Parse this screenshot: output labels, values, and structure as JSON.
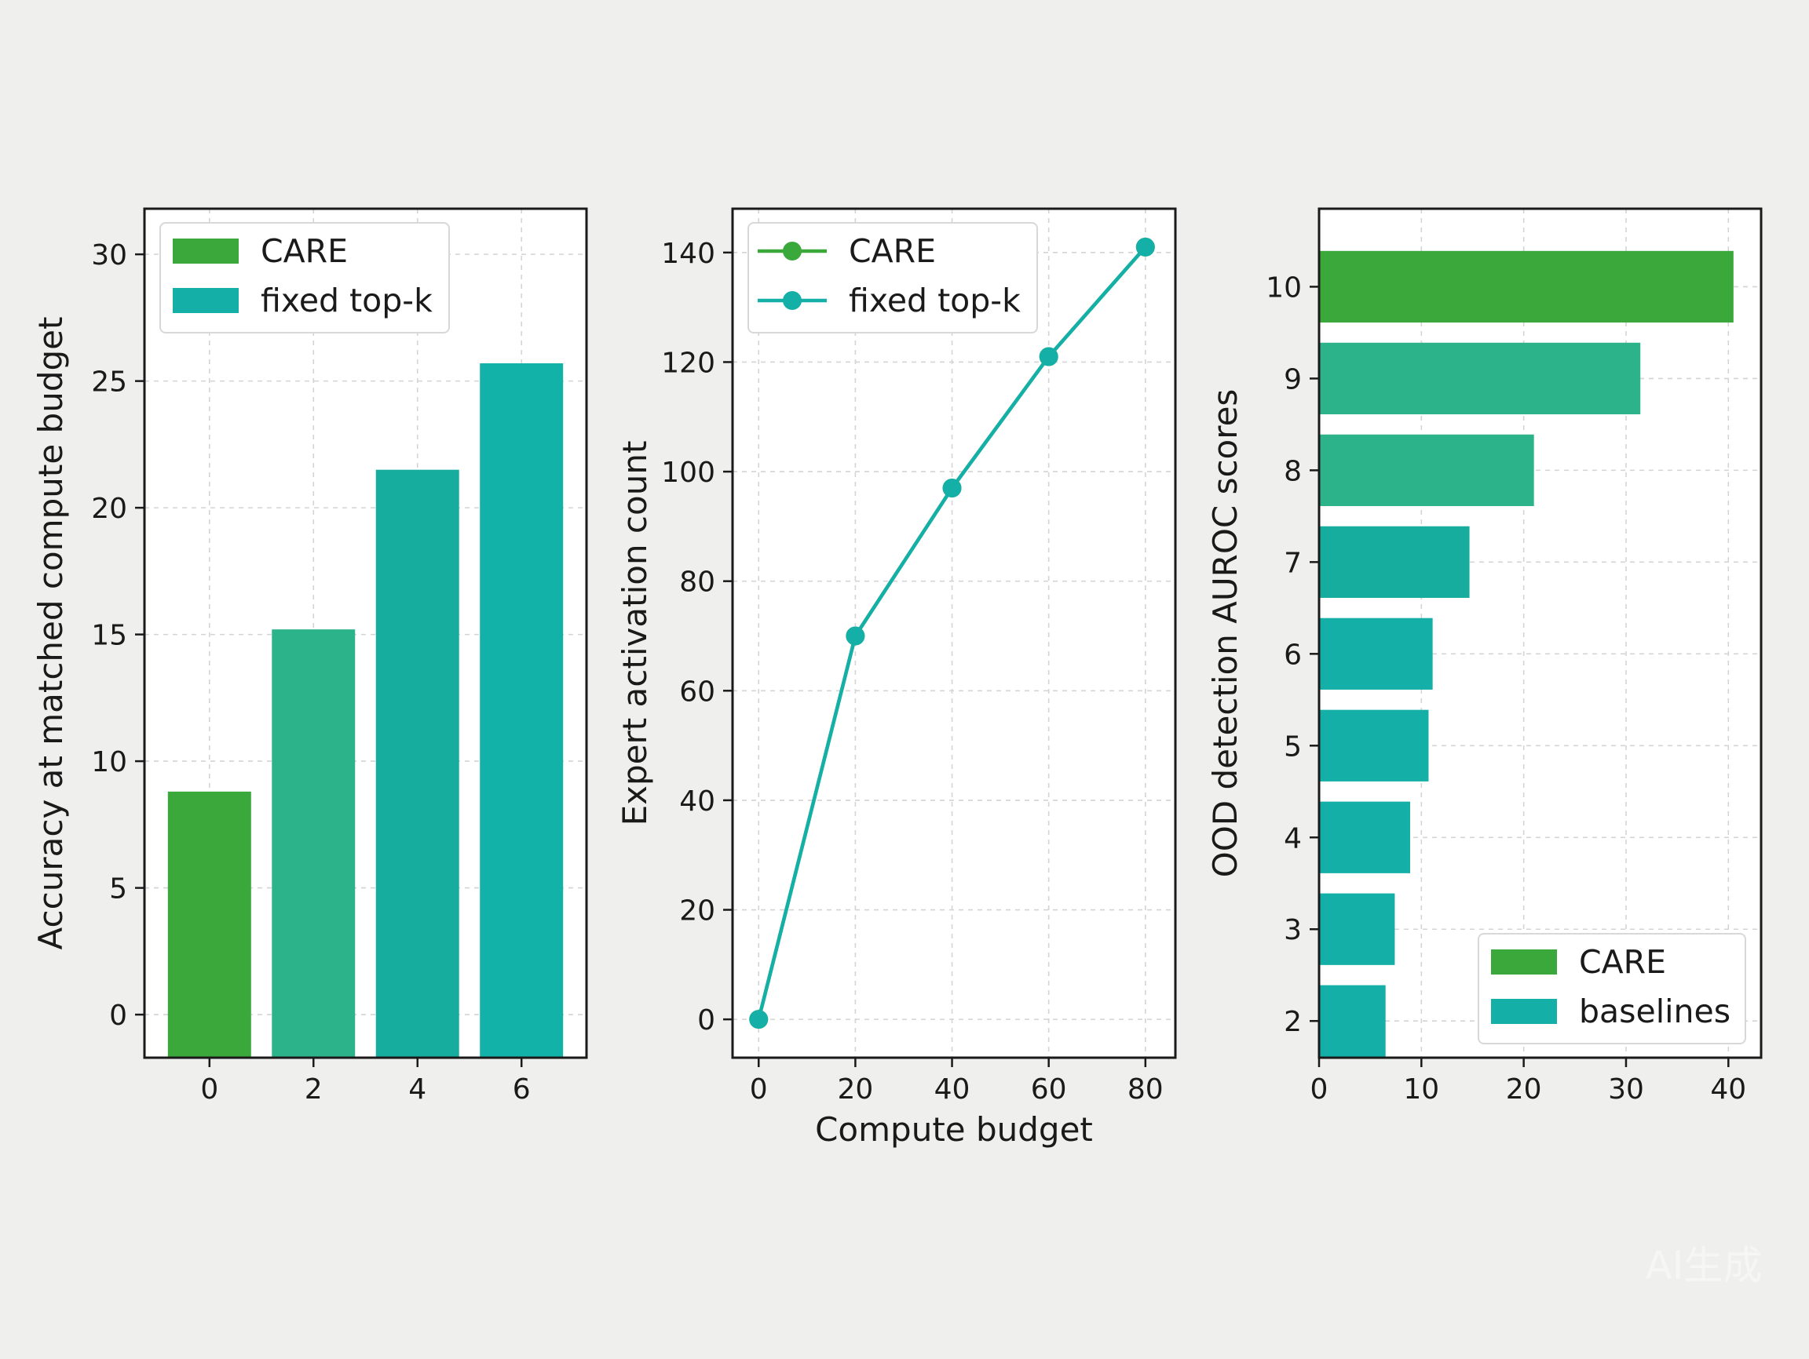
{
  "figure": {
    "background": "#efefed",
    "panel_background": "#ffffff",
    "watermark": "AI生成"
  },
  "colors": {
    "green": "#3aa83a",
    "teal_green": "#2db38a",
    "teal": "#14b0a8",
    "grid": "#d4d4d4",
    "axis": "#1a1a1a"
  },
  "chart_data": [
    {
      "id": "panel-a",
      "type": "bar",
      "orientation": "vertical",
      "ylabel": "Accuracy at matched compute budget",
      "xlabel": "",
      "x": [
        0,
        2,
        4,
        6
      ],
      "values": [
        8.8,
        15.2,
        21.5,
        25.7
      ],
      "bar_colors": [
        "#3aa83a",
        "#2db38a",
        "#17ad9e",
        "#12b2a8"
      ],
      "xticks": [
        0,
        2,
        4,
        6
      ],
      "yticks": [
        0,
        5,
        10,
        15,
        20,
        25,
        30
      ],
      "xlim": [
        -1.25,
        7.25
      ],
      "ylim": [
        -1.7,
        31.8
      ],
      "grid": true,
      "legend": {
        "placement": "top-left",
        "entries": [
          {
            "label": "CARE",
            "color": "#3aa83a",
            "kind": "patch"
          },
          {
            "label": "fixed top-k",
            "color": "#14b0a8",
            "kind": "patch"
          }
        ]
      }
    },
    {
      "id": "panel-b",
      "type": "line",
      "xlabel": "Compute budget",
      "ylabel": "Expert activation count",
      "series": [
        {
          "name": "CARE",
          "color": "#3aa83a",
          "x": [
            0,
            20,
            40,
            60,
            80
          ],
          "y": [
            0,
            70,
            97,
            121,
            141
          ]
        },
        {
          "name": "fixed top-k",
          "color": "#14b0a8",
          "x": [
            0,
            20,
            40,
            60,
            80
          ],
          "y": [
            0,
            70,
            97,
            121,
            141
          ]
        }
      ],
      "xticks": [
        0,
        20,
        40,
        60,
        80
      ],
      "yticks": [
        0,
        20,
        40,
        60,
        80,
        100,
        120,
        140
      ],
      "xlim": [
        -5.4,
        86.2
      ],
      "ylim": [
        -7,
        148
      ],
      "grid": true,
      "legend": {
        "placement": "top-left",
        "entries": [
          {
            "label": "CARE",
            "color": "#3aa83a",
            "kind": "line"
          },
          {
            "label": "fixed top-k",
            "color": "#14b0a8",
            "kind": "line"
          }
        ]
      }
    },
    {
      "id": "panel-c",
      "type": "bar",
      "orientation": "horizontal",
      "ylabel": "OOD detection AUROC scores",
      "xlabel": "",
      "y": [
        10,
        9,
        8,
        7,
        6,
        5,
        4,
        3,
        2
      ],
      "values": [
        40.5,
        31.4,
        21.0,
        14.7,
        11.1,
        10.7,
        8.9,
        7.4,
        6.5
      ],
      "bar_colors": [
        "#3aa83a",
        "#2db38a",
        "#2db38a",
        "#17ad9e",
        "#14b0a8",
        "#14b0a8",
        "#14b0a8",
        "#14b0a8",
        "#14b0a8"
      ],
      "xticks": [
        0,
        10,
        20,
        30,
        40
      ],
      "yticks": [
        2,
        3,
        4,
        5,
        6,
        7,
        8,
        9,
        10
      ],
      "xlim": [
        0,
        43.2
      ],
      "ylim": [
        1.6,
        10.85
      ],
      "grid": true,
      "legend": {
        "placement": "lower-right",
        "entries": [
          {
            "label": "CARE",
            "color": "#3aa83a",
            "kind": "patch"
          },
          {
            "label": "baselines",
            "color": "#14b0a8",
            "kind": "patch"
          }
        ]
      }
    }
  ]
}
